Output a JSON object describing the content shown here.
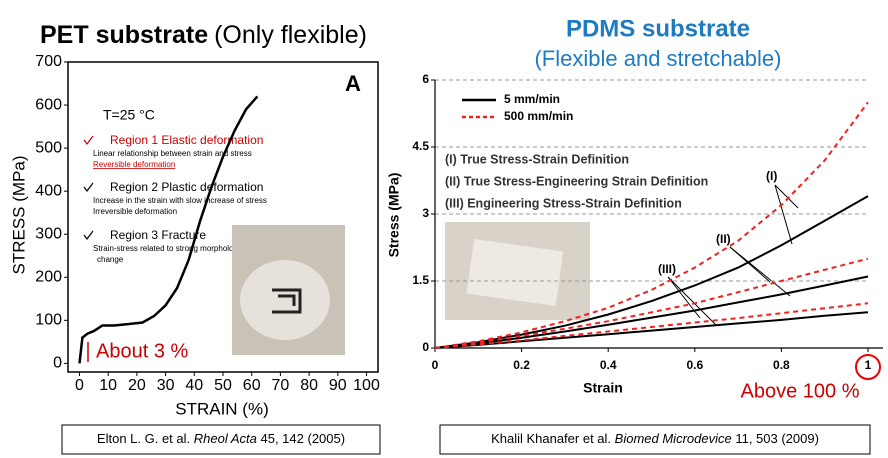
{
  "chart_data": [
    {
      "type": "line",
      "title": "PET substrate",
      "subtitle": "(Only flexible)",
      "panel_label": "A",
      "x_label": "STRAIN (%)",
      "y_label": "STRESS (MPa)",
      "x": [
        0,
        1,
        2,
        3,
        5,
        8,
        12,
        18,
        22,
        26,
        30,
        34,
        38,
        42,
        46,
        50,
        54,
        58,
        62
      ],
      "values": [
        0,
        60,
        65,
        70,
        75,
        88,
        88,
        92,
        95,
        110,
        135,
        175,
        240,
        330,
        410,
        480,
        540,
        590,
        620
      ],
      "color": "#000000",
      "xlim": [
        -4,
        104
      ],
      "ylim": [
        -20,
        700
      ],
      "xticks": [
        0,
        10,
        20,
        30,
        40,
        50,
        60,
        70,
        80,
        90,
        100
      ],
      "yticks": [
        0,
        100,
        200,
        300,
        400,
        500,
        600,
        700
      ],
      "grid": false,
      "annotations": {
        "temperature": "T=25 °C",
        "regions": [
          {
            "heading": "Region 1 Elastic deformation",
            "lines": [
              "Linear relationship between strain and stress",
              "Reversible deformation"
            ]
          },
          {
            "heading": "Region 2 Plastic deformation",
            "lines": [
              "Increase in the strain with slow increase of stress",
              "Irreversible deformation"
            ]
          },
          {
            "heading": "Region 3 Fracture",
            "lines": [
              "Strain-stress related to strong morphological",
              "change"
            ]
          }
        ],
        "highlight": "About 3 %"
      },
      "citation": {
        "authors": "Elton L. G. et al.",
        "journal": "Rheol Acta",
        "details": "45, 142 (2005)"
      }
    },
    {
      "type": "line",
      "title": "PDMS substrate",
      "subtitle": "(Flexible and stretchable)",
      "x_label": "Strain",
      "y_label": "Stress (MPa)",
      "x": [
        0,
        0.1,
        0.2,
        0.3,
        0.4,
        0.5,
        0.6,
        0.7,
        0.8,
        0.9,
        1
      ],
      "series": [
        {
          "name": "5 mm/min",
          "color": "#000000",
          "dashed": false,
          "values": [
            [
              0,
              0.13,
              0.3,
              0.5,
              0.75,
              1.05,
              1.4,
              1.8,
              2.3,
              2.85,
              3.4
            ],
            [
              0,
              0.1,
              0.23,
              0.37,
              0.52,
              0.68,
              0.84,
              1.02,
              1.2,
              1.4,
              1.6
            ],
            [
              0,
              0.07,
              0.15,
              0.23,
              0.31,
              0.39,
              0.47,
              0.55,
              0.63,
              0.72,
              0.8
            ]
          ]
        },
        {
          "name": "500 mm/min",
          "color": "#ee2222",
          "dashed": true,
          "values": [
            [
              0,
              0.15,
              0.35,
              0.6,
              0.9,
              1.3,
              1.8,
              2.4,
              3.2,
              4.2,
              5.5
            ],
            [
              0,
              0.12,
              0.27,
              0.43,
              0.6,
              0.8,
              1.0,
              1.25,
              1.5,
              1.75,
              2.0
            ],
            [
              0,
              0.08,
              0.17,
              0.27,
              0.37,
              0.47,
              0.57,
              0.67,
              0.78,
              0.89,
              1.0
            ]
          ]
        }
      ],
      "xlim": [
        0,
        1
      ],
      "ylim": [
        0,
        6
      ],
      "xticks": [
        0,
        0.2,
        0.4,
        0.6,
        0.8,
        1
      ],
      "yticks": [
        0,
        1.5,
        3,
        4.5,
        6
      ],
      "grid": true,
      "legend": "upper-left",
      "annotations": {
        "definitions": [
          "(I) True Stress-Strain Definition",
          "(II) True Stress-Engineering Strain Definition",
          "(III) Engineering Stress-Strain Definition"
        ],
        "curve_labels": [
          "(I)",
          "(II)",
          "(III)"
        ],
        "highlight": "Above 100 %"
      },
      "citation": {
        "authors": "Khalil Khanafer et al.",
        "journal": "Biomed Microdevice",
        "details": "11, 503 (2009)"
      }
    }
  ]
}
